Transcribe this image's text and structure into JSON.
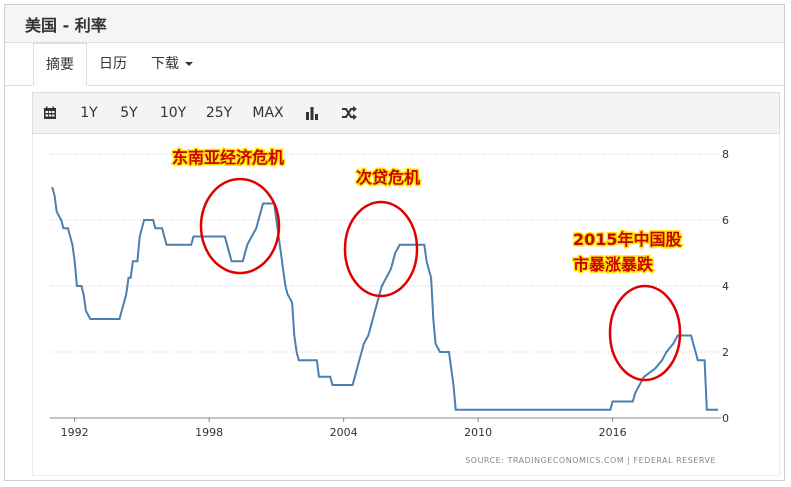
{
  "header": {
    "title": "美国 - 利率"
  },
  "tabs": [
    {
      "label": "摘要",
      "active": true
    },
    {
      "label": "日历",
      "active": false
    },
    {
      "label": "下载",
      "active": false,
      "dropdown": true
    }
  ],
  "toolbar": {
    "calendar_icon": "calendar-icon",
    "ranges": [
      "1Y",
      "5Y",
      "10Y",
      "25Y",
      "MAX"
    ],
    "chart_type_icon": "bar-chart-icon",
    "compare_icon": "shuffle-icon"
  },
  "source_text": "SOURCE: TRADINGECONOMICS.COM  |  FEDERAL  RESERVE",
  "annotations": [
    {
      "text": "东南亚经济危机"
    },
    {
      "text": "次贷危机"
    },
    {
      "text": "2015年中国股",
      "text2": "市暴涨暴跌"
    }
  ],
  "chart_data": {
    "type": "line",
    "title": "",
    "xlabel": "",
    "ylabel": "",
    "xlim": [
      1990.9,
      2020.7
    ],
    "ylim": [
      0,
      8
    ],
    "x_ticks": [
      {
        "value": 1992,
        "label": "1992"
      },
      {
        "value": 1998,
        "label": "1998"
      },
      {
        "value": 2004,
        "label": "2004"
      },
      {
        "value": 2010,
        "label": "2010"
      },
      {
        "value": 2016,
        "label": "2016"
      }
    ],
    "y_ticks": [
      {
        "value": 0,
        "label": "0"
      },
      {
        "value": 2,
        "label": "2"
      },
      {
        "value": 4,
        "label": "4"
      },
      {
        "value": 6,
        "label": "6"
      },
      {
        "value": 8,
        "label": "8"
      }
    ],
    "grid": "horizontal dotted",
    "line_color": "#4a7fb0",
    "highlight_color": "#e00000",
    "series": [
      {
        "points": [
          [
            1991.0,
            7.0
          ],
          [
            1991.1,
            6.75
          ],
          [
            1991.2,
            6.25
          ],
          [
            1991.4,
            6.0
          ],
          [
            1991.5,
            5.75
          ],
          [
            1991.7,
            5.75
          ],
          [
            1991.8,
            5.5
          ],
          [
            1991.9,
            5.25
          ],
          [
            1992.0,
            4.75
          ],
          [
            1992.1,
            4.0
          ],
          [
            1992.3,
            4.0
          ],
          [
            1992.4,
            3.75
          ],
          [
            1992.5,
            3.25
          ],
          [
            1992.7,
            3.0
          ],
          [
            1993.0,
            3.0
          ],
          [
            1994.0,
            3.0
          ],
          [
            1994.1,
            3.25
          ],
          [
            1994.2,
            3.5
          ],
          [
            1994.3,
            3.75
          ],
          [
            1994.4,
            4.25
          ],
          [
            1994.5,
            4.25
          ],
          [
            1994.6,
            4.75
          ],
          [
            1994.8,
            4.75
          ],
          [
            1994.9,
            5.5
          ],
          [
            1995.1,
            6.0
          ],
          [
            1995.5,
            6.0
          ],
          [
            1995.6,
            5.75
          ],
          [
            1995.9,
            5.75
          ],
          [
            1996.0,
            5.5
          ],
          [
            1996.1,
            5.25
          ],
          [
            1997.2,
            5.25
          ],
          [
            1997.3,
            5.5
          ],
          [
            1998.7,
            5.5
          ],
          [
            1998.8,
            5.25
          ],
          [
            1998.9,
            5.0
          ],
          [
            1999.0,
            4.75
          ],
          [
            1999.5,
            4.75
          ],
          [
            1999.6,
            5.0
          ],
          [
            1999.7,
            5.25
          ],
          [
            1999.9,
            5.5
          ],
          [
            2000.1,
            5.75
          ],
          [
            2000.2,
            6.0
          ],
          [
            2000.4,
            6.5
          ],
          [
            2000.9,
            6.5
          ],
          [
            2001.0,
            6.0
          ],
          [
            2001.1,
            5.5
          ],
          [
            2001.2,
            5.0
          ],
          [
            2001.3,
            4.5
          ],
          [
            2001.4,
            4.0
          ],
          [
            2001.5,
            3.75
          ],
          [
            2001.7,
            3.5
          ],
          [
            2001.8,
            2.5
          ],
          [
            2001.9,
            2.0
          ],
          [
            2002.0,
            1.75
          ],
          [
            2002.8,
            1.75
          ],
          [
            2002.9,
            1.25
          ],
          [
            2003.4,
            1.25
          ],
          [
            2003.5,
            1.0
          ],
          [
            2004.4,
            1.0
          ],
          [
            2004.5,
            1.25
          ],
          [
            2004.6,
            1.5
          ],
          [
            2004.7,
            1.75
          ],
          [
            2004.8,
            2.0
          ],
          [
            2004.9,
            2.25
          ],
          [
            2005.1,
            2.5
          ],
          [
            2005.2,
            2.75
          ],
          [
            2005.3,
            3.0
          ],
          [
            2005.4,
            3.25
          ],
          [
            2005.5,
            3.5
          ],
          [
            2005.6,
            3.75
          ],
          [
            2005.7,
            4.0
          ],
          [
            2005.9,
            4.25
          ],
          [
            2006.1,
            4.5
          ],
          [
            2006.2,
            4.75
          ],
          [
            2006.3,
            5.0
          ],
          [
            2006.5,
            5.25
          ],
          [
            2007.6,
            5.25
          ],
          [
            2007.7,
            4.75
          ],
          [
            2007.8,
            4.5
          ],
          [
            2007.9,
            4.25
          ],
          [
            2008.0,
            3.0
          ],
          [
            2008.1,
            2.25
          ],
          [
            2008.3,
            2.0
          ],
          [
            2008.7,
            2.0
          ],
          [
            2008.8,
            1.5
          ],
          [
            2008.9,
            1.0
          ],
          [
            2009.0,
            0.25
          ],
          [
            2015.9,
            0.25
          ],
          [
            2016.0,
            0.5
          ],
          [
            2016.9,
            0.5
          ],
          [
            2017.0,
            0.75
          ],
          [
            2017.2,
            1.0
          ],
          [
            2017.4,
            1.25
          ],
          [
            2017.9,
            1.5
          ],
          [
            2018.2,
            1.75
          ],
          [
            2018.4,
            2.0
          ],
          [
            2018.7,
            2.25
          ],
          [
            2018.9,
            2.5
          ],
          [
            2019.5,
            2.5
          ],
          [
            2019.6,
            2.25
          ],
          [
            2019.7,
            2.0
          ],
          [
            2019.8,
            1.75
          ],
          [
            2020.1,
            1.75
          ],
          [
            2020.15,
            1.0
          ],
          [
            2020.2,
            0.25
          ],
          [
            2020.7,
            0.25
          ]
        ]
      }
    ]
  }
}
